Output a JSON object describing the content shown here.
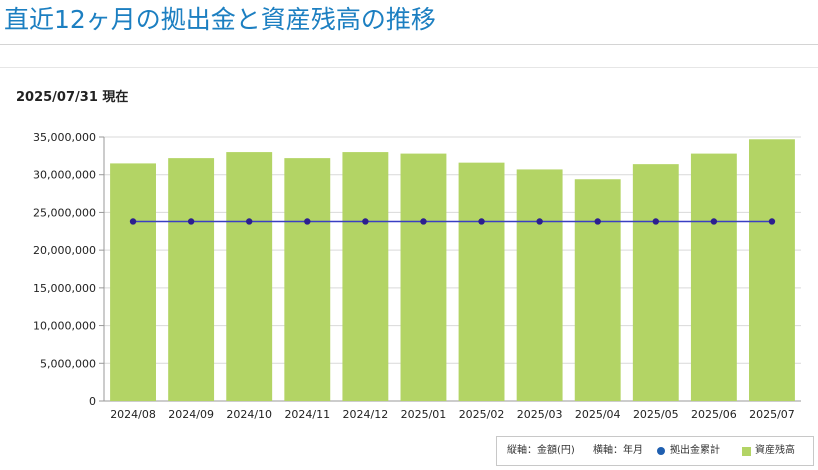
{
  "header": {
    "title": "直近12ヶ月の拠出金と資産残高の推移"
  },
  "as_of": "2025/07/31 現在",
  "legend": {
    "y_axis_note": "縦軸：金額(円)",
    "x_axis_note": "横軸：年月",
    "series_line_label": "拠出金累計",
    "series_bar_label": "資産残高"
  },
  "colors": {
    "title": "#1c7fc1",
    "bar": "#b3d465",
    "line": "#3a3fc4",
    "marker": "#2c1f8f"
  },
  "chart_data": {
    "type": "bar",
    "title": "",
    "xlabel": "年月",
    "ylabel": "金額(円)",
    "ylim": [
      0,
      35000000
    ],
    "y_ticks": [
      "0",
      "5,000,000",
      "10,000,000",
      "15,000,000",
      "20,000,000",
      "25,000,000",
      "30,000,000",
      "35,000,000"
    ],
    "categories": [
      "2024/08",
      "2024/09",
      "2024/10",
      "2024/11",
      "2024/12",
      "2025/01",
      "2025/02",
      "2025/03",
      "2025/04",
      "2025/05",
      "2025/06",
      "2025/07"
    ],
    "series": [
      {
        "name": "資産残高",
        "type": "bar",
        "values": [
          31500000,
          32200000,
          33000000,
          32200000,
          33000000,
          32800000,
          31600000,
          30700000,
          29400000,
          31400000,
          32800000,
          34700000
        ]
      },
      {
        "name": "拠出金累計",
        "type": "line",
        "values": [
          23800000,
          23800000,
          23800000,
          23800000,
          23800000,
          23800000,
          23800000,
          23800000,
          23800000,
          23800000,
          23800000,
          23800000
        ]
      }
    ],
    "grid": true,
    "legend_position": "bottom-right"
  }
}
